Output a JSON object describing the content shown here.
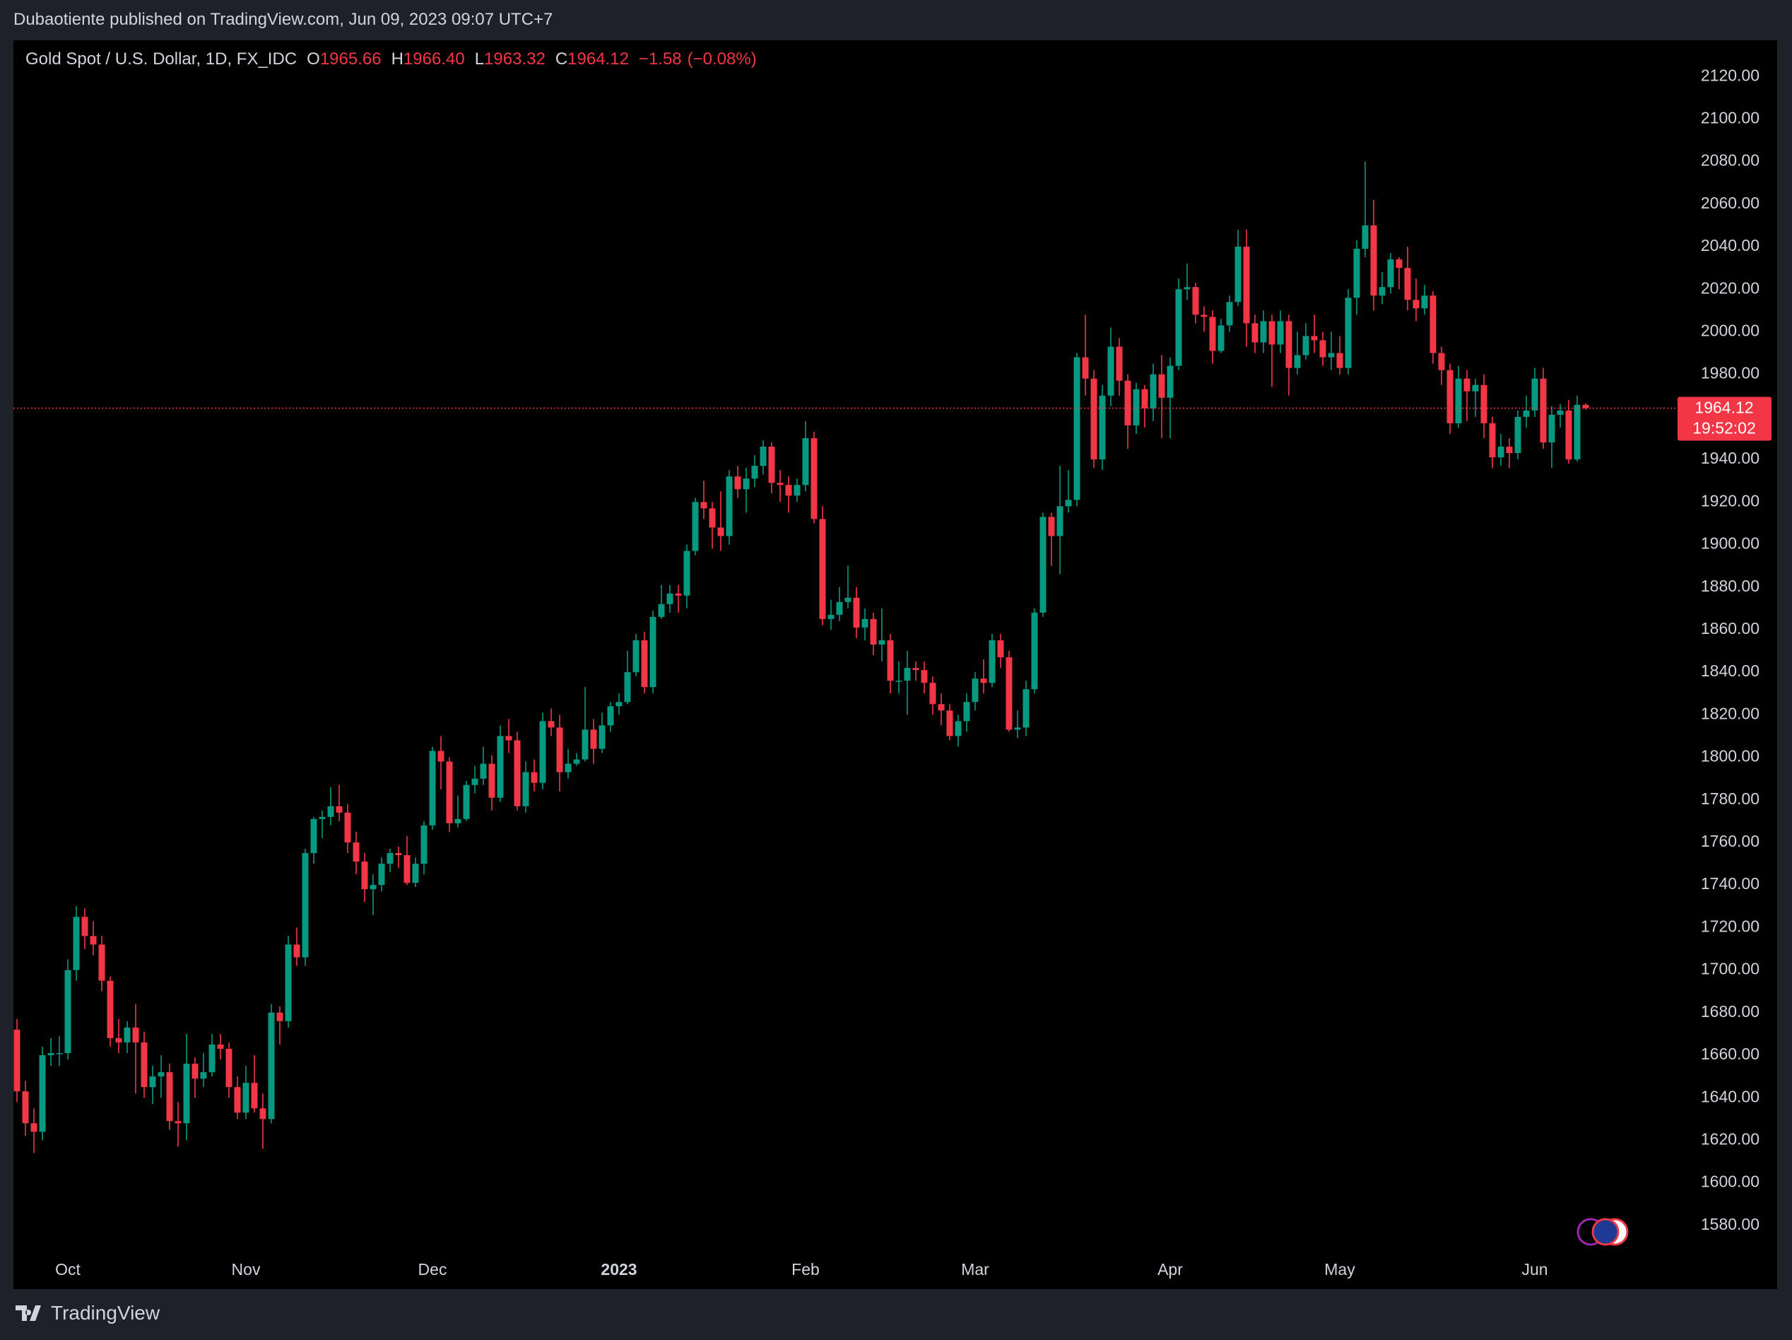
{
  "header": {
    "title": "Dubaotiente published on TradingView.com, Jun 09, 2023 09:07 UTC+7"
  },
  "footer": {
    "brand": "TradingView"
  },
  "chart_data": {
    "type": "candlestick",
    "legend": {
      "symbol": "Gold Spot / U.S. Dollar, 1D, FX_IDC",
      "ohlc": [
        {
          "prefix": "O",
          "value": 1965.66,
          "label": "1965.66"
        },
        {
          "prefix": "H",
          "value": 1966.4,
          "label": "1966.40"
        },
        {
          "prefix": "L",
          "value": 1963.32,
          "label": "1963.32"
        },
        {
          "prefix": "C",
          "value": 1964.12,
          "label": "1964.12"
        }
      ],
      "change": {
        "value": -1.58,
        "label": "−1.58"
      },
      "change_pct": {
        "value": -0.08,
        "label": "(−0.08%)"
      }
    },
    "last_price": {
      "value": 1964.12,
      "label": "1964.12"
    },
    "countdown": "19:52:02",
    "grid": false,
    "ylim": [
      1565,
      2137
    ],
    "yticks": [
      {
        "value": 1580,
        "label": "1580.00"
      },
      {
        "value": 1600,
        "label": "1600.00"
      },
      {
        "value": 1620,
        "label": "1620.00"
      },
      {
        "value": 1640,
        "label": "1640.00"
      },
      {
        "value": 1660,
        "label": "1660.00"
      },
      {
        "value": 1680,
        "label": "1680.00"
      },
      {
        "value": 1700,
        "label": "1700.00"
      },
      {
        "value": 1720,
        "label": "1720.00"
      },
      {
        "value": 1740,
        "label": "1740.00"
      },
      {
        "value": 1760,
        "label": "1760.00"
      },
      {
        "value": 1780,
        "label": "1780.00"
      },
      {
        "value": 1800,
        "label": "1800.00"
      },
      {
        "value": 1820,
        "label": "1820.00"
      },
      {
        "value": 1840,
        "label": "1840.00"
      },
      {
        "value": 1860,
        "label": "1860.00"
      },
      {
        "value": 1880,
        "label": "1880.00"
      },
      {
        "value": 1900,
        "label": "1900.00"
      },
      {
        "value": 1920,
        "label": "1920.00"
      },
      {
        "value": 1940,
        "label": "1940.00"
      },
      {
        "value": 1960,
        "label": "1960.00"
      },
      {
        "value": 1980,
        "label": "1980.00"
      },
      {
        "value": 2000,
        "label": "2000.00"
      },
      {
        "value": 2020,
        "label": "2020.00"
      },
      {
        "value": 2040,
        "label": "2040.00"
      },
      {
        "value": 2060,
        "label": "2060.00"
      },
      {
        "value": 2080,
        "label": "2080.00"
      },
      {
        "value": 2100,
        "label": "2100.00"
      },
      {
        "value": 2120,
        "label": "2120.00"
      }
    ],
    "categories": [
      null,
      null,
      null,
      null,
      null,
      null,
      "Oct",
      null,
      null,
      null,
      null,
      null,
      null,
      null,
      null,
      null,
      null,
      null,
      null,
      null,
      null,
      null,
      null,
      null,
      null,
      null,
      null,
      "Nov",
      null,
      null,
      null,
      null,
      null,
      null,
      null,
      null,
      null,
      null,
      null,
      null,
      null,
      null,
      null,
      null,
      null,
      null,
      null,
      null,
      null,
      "Dec",
      null,
      null,
      null,
      null,
      null,
      null,
      null,
      null,
      null,
      null,
      null,
      null,
      null,
      null,
      null,
      null,
      null,
      null,
      null,
      null,
      null,
      "2023",
      null,
      null,
      null,
      null,
      null,
      null,
      null,
      null,
      null,
      null,
      null,
      null,
      null,
      null,
      null,
      null,
      null,
      null,
      null,
      null,
      null,
      "Feb",
      null,
      null,
      null,
      null,
      null,
      null,
      null,
      null,
      null,
      null,
      null,
      null,
      null,
      null,
      null,
      null,
      null,
      null,
      null,
      "Mar",
      null,
      null,
      null,
      null,
      null,
      null,
      null,
      null,
      null,
      null,
      null,
      null,
      null,
      null,
      null,
      null,
      null,
      null,
      null,
      null,
      null,
      null,
      "Apr",
      null,
      null,
      null,
      null,
      null,
      null,
      null,
      null,
      null,
      null,
      null,
      null,
      null,
      null,
      null,
      null,
      null,
      null,
      null,
      "May",
      null,
      null,
      null,
      null,
      null,
      null,
      null,
      null,
      null,
      null,
      null,
      null,
      null,
      null,
      null,
      null,
      null,
      null,
      null,
      null,
      null,
      null,
      "Jun",
      null,
      null,
      null,
      null,
      null,
      null
    ],
    "series": [
      {
        "up_color": "#089981",
        "down_color": "#f23645",
        "open": [
          1672,
          1643,
          1628,
          1624,
          1660,
          1661,
          1661,
          1700,
          1725,
          1716,
          1712,
          1695,
          1668,
          1666,
          1673,
          1666,
          1645,
          1650,
          1652,
          1629,
          1628,
          1656,
          1649,
          1652,
          1665,
          1663,
          1645,
          1633,
          1647,
          1635,
          1630,
          1680,
          1676,
          1712,
          1706,
          1755,
          1771,
          1772,
          1777,
          1774,
          1760,
          1751,
          1738,
          1740,
          1750,
          1755,
          1754,
          1741,
          1750,
          1768,
          1803,
          1798,
          1769,
          1771,
          1787,
          1790,
          1797,
          1781,
          1810,
          1808,
          1777,
          1793,
          1788,
          1817,
          1814,
          1793,
          1797,
          1799,
          1813,
          1804,
          1815,
          1824,
          1826,
          1840,
          1855,
          1833,
          1866,
          1872,
          1877,
          1876,
          1897,
          1920,
          1917,
          1908,
          1904,
          1932,
          1926,
          1931,
          1937,
          1946,
          1929,
          1928,
          1923,
          1928,
          1950,
          1912,
          1865,
          1867,
          1873,
          1875,
          1861,
          1865,
          1853,
          1855,
          1836,
          1836,
          1842,
          1841,
          1835,
          1825,
          1822,
          1810,
          1817,
          1826,
          1837,
          1835,
          1855,
          1847,
          1813,
          1814,
          1832,
          1868,
          1913,
          1904,
          1918,
          1921,
          1988,
          1978,
          1940,
          1970,
          1993,
          1977,
          1956,
          1973,
          1964,
          1980,
          1969,
          1984,
          2020,
          2021,
          2008,
          2007,
          1991,
          2003,
          2014,
          2040,
          2004,
          1995,
          2005,
          1994,
          2005,
          1983,
          1989,
          1998,
          1996,
          1988,
          1990,
          1983,
          2016,
          2039,
          2050,
          2017,
          2021,
          2034,
          2030,
          2015,
          2011,
          2017,
          1990,
          1982,
          1957,
          1978,
          1972,
          1975,
          1957,
          1941,
          1946,
          1943,
          1960,
          1963,
          1978,
          1948,
          1961,
          1963,
          1940,
          1965.66
        ],
        "high": [
          1677,
          1648,
          1635,
          1664,
          1668,
          1669,
          1705,
          1730,
          1729,
          1723,
          1716,
          1697,
          1677,
          1676,
          1684,
          1671,
          1655,
          1660,
          1656,
          1638,
          1670,
          1659,
          1661,
          1670,
          1670,
          1666,
          1650,
          1655,
          1660,
          1642,
          1684,
          1683,
          1716,
          1720,
          1757,
          1772,
          1775,
          1786,
          1787,
          1778,
          1765,
          1755,
          1745,
          1753,
          1757,
          1758,
          1763,
          1753,
          1770,
          1805,
          1810,
          1800,
          1782,
          1789,
          1796,
          1805,
          1801,
          1815,
          1818,
          1812,
          1798,
          1799,
          1821,
          1823,
          1820,
          1804,
          1802,
          1833,
          1818,
          1821,
          1826,
          1830,
          1850,
          1858,
          1859,
          1869,
          1881,
          1881,
          1881,
          1900,
          1922,
          1930,
          1920,
          1925,
          1935,
          1937,
          1936,
          1942,
          1949,
          1948,
          1935,
          1932,
          1931,
          1958,
          1953,
          1918,
          1874,
          1880,
          1890,
          1880,
          1870,
          1868,
          1870,
          1858,
          1845,
          1850,
          1845,
          1845,
          1838,
          1830,
          1825,
          1820,
          1830,
          1840,
          1846,
          1858,
          1858,
          1850,
          1822,
          1836,
          1870,
          1915,
          1915,
          1937,
          1935,
          1990,
          2008,
          1982,
          1975,
          2002,
          1997,
          1980,
          1976,
          1975,
          1985,
          1989,
          1988,
          2025,
          2032,
          2023,
          2012,
          2010,
          2006,
          2017,
          2048,
          2048,
          2008,
          2010,
          2008,
          2010,
          2008,
          2000,
          2004,
          2008,
          2000,
          2000,
          1998,
          2020,
          2043,
          2080,
          2062,
          2028,
          2037,
          2035,
          2040,
          2025,
          2022,
          2019,
          1993,
          1985,
          1984,
          1982,
          1978,
          1980,
          1960,
          1952,
          1950,
          1963,
          1970,
          1983,
          1983,
          1965,
          1966,
          1968,
          1970,
          1966.4
        ],
        "low": [
          1638,
          1622,
          1614,
          1620,
          1655,
          1655,
          1658,
          1695,
          1710,
          1707,
          1690,
          1664,
          1661,
          1661,
          1642,
          1640,
          1637,
          1640,
          1625,
          1617,
          1620,
          1640,
          1645,
          1650,
          1658,
          1640,
          1630,
          1630,
          1633,
          1616,
          1628,
          1665,
          1673,
          1702,
          1702,
          1750,
          1762,
          1768,
          1770,
          1755,
          1745,
          1732,
          1726,
          1737,
          1746,
          1748,
          1740,
          1739,
          1745,
          1766,
          1785,
          1765,
          1767,
          1770,
          1783,
          1787,
          1775,
          1779,
          1802,
          1775,
          1774,
          1784,
          1785,
          1810,
          1784,
          1790,
          1796,
          1798,
          1797,
          1802,
          1812,
          1820,
          1825,
          1838,
          1830,
          1830,
          1865,
          1868,
          1868,
          1870,
          1895,
          1912,
          1898,
          1897,
          1900,
          1922,
          1915,
          1927,
          1933,
          1924,
          1920,
          1915,
          1920,
          1925,
          1910,
          1862,
          1860,
          1864,
          1870,
          1856,
          1855,
          1848,
          1845,
          1830,
          1830,
          1820,
          1836,
          1830,
          1820,
          1815,
          1808,
          1805,
          1812,
          1822,
          1830,
          1833,
          1842,
          1812,
          1809,
          1810,
          1830,
          1866,
          1890,
          1886,
          1915,
          1918,
          1970,
          1936,
          1935,
          1965,
          1970,
          1945,
          1952,
          1955,
          1958,
          1950,
          1950,
          1982,
          2015,
          2004,
          2000,
          1985,
          1990,
          2000,
          2012,
          1993,
          1990,
          1990,
          1974,
          1990,
          1970,
          1980,
          1987,
          1990,
          1984,
          1982,
          1980,
          1980,
          2008,
          2035,
          2010,
          2013,
          2018,
          2020,
          2010,
          2005,
          2008,
          1985,
          1975,
          1952,
          1955,
          1958,
          1960,
          1950,
          1936,
          1937,
          1936,
          1940,
          1955,
          1960,
          1945,
          1936,
          1955,
          1938,
          1939,
          1963.32
        ],
        "close": [
          1643,
          1628,
          1624,
          1660,
          1661,
          1661,
          1700,
          1725,
          1716,
          1712,
          1695,
          1668,
          1666,
          1673,
          1666,
          1645,
          1650,
          1652,
          1629,
          1628,
          1656,
          1649,
          1652,
          1665,
          1663,
          1645,
          1633,
          1647,
          1635,
          1630,
          1680,
          1676,
          1712,
          1706,
          1755,
          1771,
          1772,
          1777,
          1774,
          1760,
          1751,
          1738,
          1740,
          1750,
          1755,
          1754,
          1741,
          1750,
          1768,
          1803,
          1798,
          1769,
          1771,
          1787,
          1790,
          1797,
          1781,
          1810,
          1808,
          1777,
          1793,
          1788,
          1817,
          1814,
          1793,
          1797,
          1799,
          1813,
          1804,
          1815,
          1824,
          1826,
          1840,
          1855,
          1833,
          1866,
          1872,
          1877,
          1876,
          1897,
          1920,
          1917,
          1908,
          1904,
          1932,
          1926,
          1931,
          1937,
          1946,
          1929,
          1928,
          1923,
          1928,
          1950,
          1912,
          1865,
          1867,
          1873,
          1875,
          1861,
          1865,
          1853,
          1855,
          1836,
          1836,
          1842,
          1841,
          1835,
          1825,
          1822,
          1810,
          1817,
          1826,
          1837,
          1835,
          1855,
          1847,
          1813,
          1814,
          1832,
          1868,
          1913,
          1904,
          1918,
          1921,
          1988,
          1978,
          1940,
          1970,
          1993,
          1977,
          1956,
          1973,
          1964,
          1980,
          1969,
          1984,
          2020,
          2021,
          2008,
          2007,
          1991,
          2003,
          2014,
          2040,
          2004,
          1995,
          2005,
          1994,
          2005,
          1983,
          1989,
          1998,
          1996,
          1988,
          1990,
          1983,
          2016,
          2039,
          2050,
          2017,
          2021,
          2034,
          2030,
          2015,
          2011,
          2017,
          1990,
          1982,
          1957,
          1978,
          1972,
          1975,
          1957,
          1941,
          1946,
          1943,
          1960,
          1963,
          1978,
          1948,
          1961,
          1963,
          1940,
          1965.66,
          1964.12
        ]
      }
    ]
  }
}
